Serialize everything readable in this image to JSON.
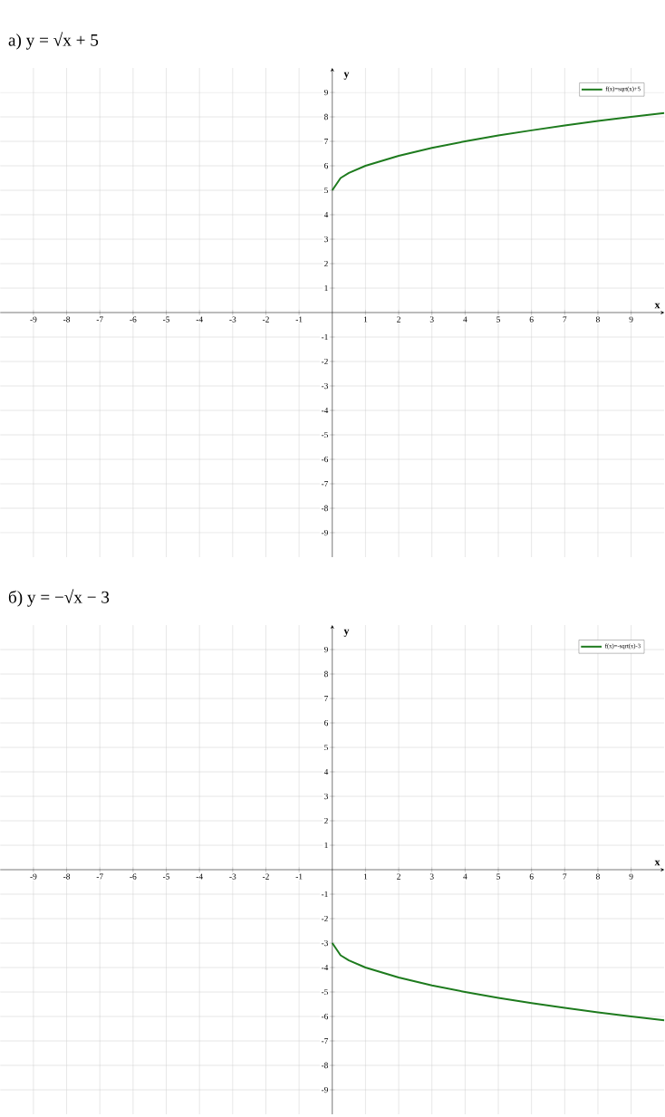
{
  "chart_data": [
    {
      "type": "line",
      "title": "а) y = √x + 5",
      "xlabel": "x",
      "ylabel": "y",
      "xlim": [
        -10,
        10
      ],
      "ylim": [
        -10,
        10
      ],
      "xticks": [
        -9,
        -8,
        -7,
        -6,
        -5,
        -4,
        -3,
        -2,
        -1,
        1,
        2,
        3,
        4,
        5,
        6,
        7,
        8,
        9
      ],
      "yticks": [
        -9,
        -8,
        -7,
        -6,
        -5,
        -4,
        -3,
        -2,
        -1,
        1,
        2,
        3,
        4,
        5,
        6,
        7,
        8,
        9
      ],
      "grid": true,
      "legend": "top right",
      "series": [
        {
          "name": "f(x)=sqrt(x)+5",
          "color": "#1e7b1e",
          "x": [
            0,
            0.25,
            0.5,
            1,
            2,
            3,
            4,
            5,
            6,
            7,
            8,
            9,
            10
          ],
          "values": [
            5,
            5.5,
            5.71,
            6,
            6.41,
            6.73,
            7,
            7.24,
            7.45,
            7.65,
            7.83,
            8,
            8.16
          ]
        }
      ]
    },
    {
      "type": "line",
      "title": "б) y = −√x − 3",
      "xlabel": "x",
      "ylabel": "y",
      "xlim": [
        -10,
        10
      ],
      "ylim": [
        -10,
        10
      ],
      "xticks": [
        -9,
        -8,
        -7,
        -6,
        -5,
        -4,
        -3,
        -2,
        -1,
        1,
        2,
        3,
        4,
        5,
        6,
        7,
        8,
        9
      ],
      "yticks": [
        -9,
        -8,
        -7,
        -6,
        -5,
        -4,
        -3,
        -2,
        -1,
        1,
        2,
        3,
        4,
        5,
        6,
        7,
        8,
        9
      ],
      "grid": true,
      "legend": "top right",
      "series": [
        {
          "name": "f(x)=-sqrt(x)-3",
          "color": "#1e7b1e",
          "x": [
            0,
            0.25,
            0.5,
            1,
            2,
            3,
            4,
            5,
            6,
            7,
            8,
            9,
            10
          ],
          "values": [
            -3,
            -3.5,
            -3.71,
            -4,
            -4.41,
            -4.73,
            -5,
            -5.24,
            -5.45,
            -5.65,
            -5.83,
            -6,
            -6.16
          ]
        }
      ]
    }
  ]
}
